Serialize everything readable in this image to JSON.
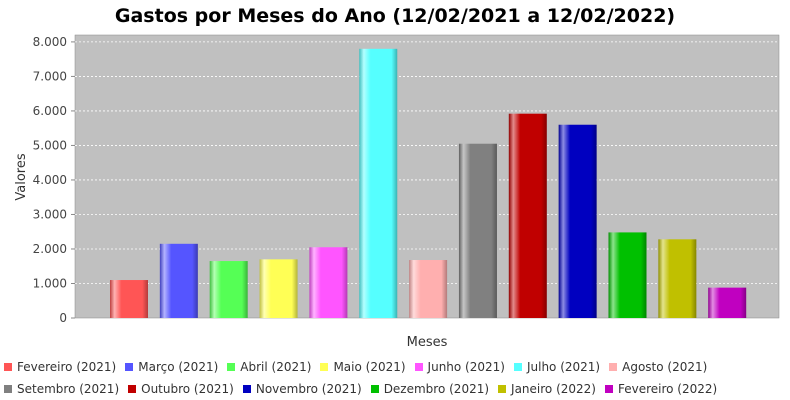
{
  "chart_data": {
    "type": "bar",
    "title": "Gastos por Meses do Ano (12/02/2021 a 12/02/2022)",
    "xlabel": "Meses",
    "ylabel": "Valores",
    "ylim": [
      0,
      8200
    ],
    "yticks": [
      "0",
      "1.000",
      "2.000",
      "3.000",
      "4.000",
      "5.000",
      "6.000",
      "7.000",
      "8.000"
    ],
    "ytick_values": [
      0,
      1000,
      2000,
      3000,
      4000,
      5000,
      6000,
      7000,
      8000
    ],
    "grid": true,
    "legend_position": "bottom",
    "categories": [
      "Fevereiro (2021)",
      "Março (2021)",
      "Abril (2021)",
      "Maio (2021)",
      "Junho (2021)",
      "Julho (2021)",
      "Agosto (2021)",
      "Setembro (2021)",
      "Outubro (2021)",
      "Novembro (2021)",
      "Dezembro (2021)",
      "Janeiro (2022)",
      "Fevereiro (2022)"
    ],
    "values": [
      1100,
      2150,
      1650,
      1700,
      2050,
      7800,
      1680,
      5050,
      5920,
      5600,
      2480,
      2280,
      880
    ],
    "colors": [
      "#ff5555",
      "#5555ff",
      "#55ff55",
      "#ffff55",
      "#ff55ff",
      "#55ffff",
      "#ffafaf",
      "#808080",
      "#c00000",
      "#0000c0",
      "#00c000",
      "#c0c000",
      "#c000c0"
    ]
  }
}
